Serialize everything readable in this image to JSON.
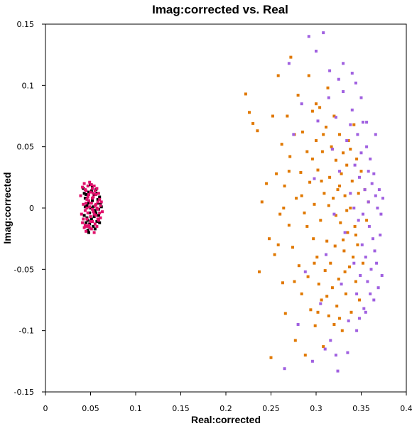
{
  "chart_data": {
    "type": "scatter",
    "title": "Imag:corrected vs. Real",
    "xlabel": "Real:corrected",
    "ylabel": "Imag:corrected",
    "xlim": [
      0,
      0.4
    ],
    "ylim": [
      -0.15,
      0.15
    ],
    "xticks": [
      "0",
      "0.05",
      "0.1",
      "0.15",
      "0.2",
      "0.25",
      "0.3",
      "0.35",
      "0.4"
    ],
    "yticks": [
      "-0.15",
      "-0.1",
      "-0.05",
      "0",
      "0.05",
      "0.1",
      "0.15"
    ],
    "grid": false,
    "legend": "none",
    "series": [
      {
        "color": "#000000",
        "points": [
          [
            0.042,
            0.016
          ],
          [
            0.044,
            0.008
          ],
          [
            0.045,
            -0.012
          ],
          [
            0.046,
            0.002
          ],
          [
            0.047,
            -0.018
          ],
          [
            0.048,
            0.013
          ],
          [
            0.049,
            -0.004
          ],
          [
            0.05,
            0.019
          ],
          [
            0.051,
            -0.009
          ],
          [
            0.052,
            0.006
          ],
          [
            0.053,
            -0.015
          ],
          [
            0.054,
            0.011
          ],
          [
            0.055,
            -0.002
          ],
          [
            0.056,
            0.015
          ],
          [
            0.057,
            -0.011
          ],
          [
            0.058,
            0.004
          ],
          [
            0.059,
            -0.006
          ],
          [
            0.06,
            0.009
          ],
          [
            0.043,
            -0.006
          ],
          [
            0.045,
            0.011
          ],
          [
            0.047,
            0.004
          ],
          [
            0.049,
            -0.013
          ],
          [
            0.051,
            0.014
          ],
          [
            0.053,
            0.001
          ],
          [
            0.055,
            -0.017
          ],
          [
            0.057,
            0.012
          ],
          [
            0.059,
            -0.001
          ],
          [
            0.061,
            0.003
          ],
          [
            0.046,
            -0.008
          ],
          [
            0.05,
            0.0
          ],
          [
            0.054,
            -0.007
          ],
          [
            0.058,
            0.007
          ],
          [
            0.044,
            0.001
          ],
          [
            0.048,
            -0.02
          ],
          [
            0.052,
            0.017
          ],
          [
            0.056,
            -0.004
          ],
          [
            0.06,
            -0.012
          ],
          [
            0.062,
            0.001
          ],
          [
            0.043,
            0.012
          ],
          [
            0.047,
            -0.01
          ]
        ]
      },
      {
        "color": "#e0106a",
        "points": [
          [
            0.039,
            0.01
          ],
          [
            0.04,
            -0.005
          ],
          [
            0.041,
            0.017
          ],
          [
            0.041,
            -0.012
          ],
          [
            0.042,
            0.003
          ],
          [
            0.043,
            -0.016
          ],
          [
            0.043,
            0.02
          ],
          [
            0.044,
            -0.002
          ],
          [
            0.045,
            0.014
          ],
          [
            0.045,
            -0.019
          ],
          [
            0.046,
            0.007
          ],
          [
            0.046,
            -0.009
          ],
          [
            0.047,
            0.018
          ],
          [
            0.047,
            -0.004
          ],
          [
            0.048,
            0.011
          ],
          [
            0.048,
            -0.014
          ],
          [
            0.049,
            0.001
          ],
          [
            0.049,
            0.021
          ],
          [
            0.05,
            -0.007
          ],
          [
            0.05,
            0.013
          ],
          [
            0.051,
            -0.017
          ],
          [
            0.051,
            0.004
          ],
          [
            0.052,
            -0.011
          ],
          [
            0.052,
            0.016
          ],
          [
            0.053,
            -0.003
          ],
          [
            0.053,
            0.009
          ],
          [
            0.054,
            -0.02
          ],
          [
            0.054,
            0.018
          ],
          [
            0.055,
            0.002
          ],
          [
            0.055,
            -0.013
          ],
          [
            0.056,
            0.011
          ],
          [
            0.056,
            -0.006
          ],
          [
            0.057,
            0.016
          ],
          [
            0.057,
            -0.015
          ],
          [
            0.058,
            0.005
          ],
          [
            0.058,
            -0.001
          ],
          [
            0.059,
            0.012
          ],
          [
            0.059,
            -0.01
          ],
          [
            0.06,
            0.007
          ],
          [
            0.06,
            -0.004
          ],
          [
            0.061,
            0.002
          ],
          [
            0.061,
            -0.008
          ],
          [
            0.062,
            0.005
          ],
          [
            0.063,
            -0.003
          ],
          [
            0.042,
            -0.009
          ],
          [
            0.044,
            0.015
          ],
          [
            0.046,
            0.0
          ],
          [
            0.048,
            0.006
          ],
          [
            0.05,
            -0.011
          ],
          [
            0.052,
            0.008
          ],
          [
            0.054,
            -0.005
          ],
          [
            0.056,
            0.003
          ],
          [
            0.058,
            -0.009
          ],
          [
            0.044,
            -0.014
          ],
          [
            0.047,
            0.009
          ],
          [
            0.051,
            0.019
          ],
          [
            0.055,
            0.014
          ],
          [
            0.049,
            -0.016
          ],
          [
            0.053,
            0.012
          ],
          [
            0.057,
            0.0
          ],
          [
            0.045,
            0.004
          ],
          [
            0.05,
            0.004
          ],
          [
            0.046,
            -0.015
          ],
          [
            0.052,
            -0.001
          ]
        ]
      },
      {
        "color": "#e07800",
        "points": [
          [
            0.222,
            0.093
          ],
          [
            0.226,
            0.078
          ],
          [
            0.23,
            0.069
          ],
          [
            0.235,
            0.063
          ],
          [
            0.237,
            -0.052
          ],
          [
            0.24,
            0.005
          ],
          [
            0.245,
            0.02
          ],
          [
            0.248,
            -0.025
          ],
          [
            0.25,
            -0.122
          ],
          [
            0.252,
            0.075
          ],
          [
            0.254,
            -0.038
          ],
          [
            0.256,
            0.028
          ],
          [
            0.258,
            0.108
          ],
          [
            0.26,
            -0.005
          ],
          [
            0.262,
            0.052
          ],
          [
            0.263,
            -0.061
          ],
          [
            0.265,
            0.018
          ],
          [
            0.266,
            -0.086
          ],
          [
            0.268,
            0.075
          ],
          [
            0.27,
            -0.014
          ],
          [
            0.271,
            0.042
          ],
          [
            0.272,
            0.123
          ],
          [
            0.274,
            -0.032
          ],
          [
            0.276,
            0.06
          ],
          [
            0.277,
            -0.108
          ],
          [
            0.278,
            0.008
          ],
          [
            0.28,
            0.092
          ],
          [
            0.281,
            -0.047
          ],
          [
            0.283,
            0.029
          ],
          [
            0.284,
            -0.07
          ],
          [
            0.285,
            0.062
          ],
          [
            0.287,
            -0.004
          ],
          [
            0.288,
            -0.12
          ],
          [
            0.29,
            0.046
          ],
          [
            0.291,
            -0.056
          ],
          [
            0.292,
            0.108
          ],
          [
            0.293,
            0.021
          ],
          [
            0.294,
            -0.083
          ],
          [
            0.296,
            0.079
          ],
          [
            0.297,
            -0.025
          ],
          [
            0.298,
            0.003
          ],
          [
            0.299,
            -0.096
          ],
          [
            0.3,
            0.055
          ],
          [
            0.301,
            -0.04
          ],
          [
            0.302,
            0.031
          ],
          [
            0.303,
            -0.062
          ],
          [
            0.304,
            0.082
          ],
          [
            0.305,
            -0.01
          ],
          [
            0.306,
            -0.075
          ],
          [
            0.307,
            0.046
          ],
          [
            0.308,
            -0.113
          ],
          [
            0.309,
            0.012
          ],
          [
            0.31,
            -0.051
          ],
          [
            0.311,
            0.066
          ],
          [
            0.312,
            -0.027
          ],
          [
            0.313,
            0.098
          ],
          [
            0.314,
            -0.088
          ],
          [
            0.315,
            0.025
          ],
          [
            0.316,
            -0.045
          ],
          [
            0.317,
            0.05
          ],
          [
            0.318,
            -0.065
          ],
          [
            0.319,
            0.008
          ],
          [
            0.32,
            0.075
          ],
          [
            0.321,
            -0.031
          ],
          [
            0.322,
            0.039
          ],
          [
            0.323,
            -0.08
          ],
          [
            0.324,
            0.015
          ],
          [
            0.325,
            -0.058
          ],
          [
            0.326,
            0.06
          ],
          [
            0.327,
            -0.012
          ],
          [
            0.328,
            0.028
          ],
          [
            0.329,
            -0.1
          ],
          [
            0.33,
            0.045
          ],
          [
            0.331,
            -0.035
          ],
          [
            0.332,
            0.01
          ],
          [
            0.333,
            -0.07
          ],
          [
            0.334,
            0.035
          ],
          [
            0.335,
            -0.02
          ],
          [
            0.336,
            0.055
          ],
          [
            0.337,
            -0.048
          ],
          [
            0.338,
            0.0
          ],
          [
            0.339,
            -0.085
          ],
          [
            0.34,
            0.022
          ],
          [
            0.341,
            -0.04
          ],
          [
            0.342,
            0.068
          ],
          [
            0.343,
            -0.015
          ],
          [
            0.344,
            -0.06
          ],
          [
            0.345,
            0.04
          ],
          [
            0.346,
            -0.03
          ],
          [
            0.347,
            0.012
          ],
          [
            0.348,
            -0.075
          ],
          [
            0.35,
            0.03
          ],
          [
            0.352,
            -0.045
          ],
          [
            0.354,
            0.015
          ],
          [
            0.356,
            -0.01
          ],
          [
            0.358,
            0.005
          ],
          [
            0.284,
            0.01
          ],
          [
            0.29,
            -0.015
          ],
          [
            0.296,
            0.04
          ],
          [
            0.302,
            -0.085
          ],
          [
            0.308,
            0.06
          ],
          [
            0.314,
            0.002
          ],
          [
            0.32,
            -0.095
          ],
          [
            0.326,
            0.018
          ],
          [
            0.332,
            -0.052
          ],
          [
            0.338,
            0.048
          ],
          [
            0.344,
            -0.022
          ],
          [
            0.276,
            -0.06
          ],
          [
            0.27,
            0.03
          ],
          [
            0.264,
            0.0
          ],
          [
            0.258,
            -0.03
          ],
          [
            0.3,
            0.085
          ],
          [
            0.318,
            0.048
          ],
          [
            0.322,
            -0.006
          ],
          [
            0.33,
            -0.026
          ],
          [
            0.306,
            0.022
          ],
          [
            0.312,
            -0.072
          ],
          [
            0.326,
            -0.09
          ],
          [
            0.334,
            -0.002
          ],
          [
            0.298,
            -0.045
          ]
        ]
      },
      {
        "color": "#a060e0",
        "points": [
          [
            0.265,
            -0.131
          ],
          [
            0.27,
            0.118
          ],
          [
            0.275,
            0.06
          ],
          [
            0.28,
            -0.095
          ],
          [
            0.284,
            0.085
          ],
          [
            0.288,
            -0.052
          ],
          [
            0.292,
            0.14
          ],
          [
            0.296,
            -0.125
          ],
          [
            0.298,
            0.024
          ],
          [
            0.302,
            0.071
          ],
          [
            0.305,
            -0.078
          ],
          [
            0.308,
            0.143
          ],
          [
            0.311,
            -0.038
          ],
          [
            0.314,
            0.09
          ],
          [
            0.316,
            -0.108
          ],
          [
            0.318,
            0.048
          ],
          [
            0.32,
            -0.005
          ],
          [
            0.322,
            0.074
          ],
          [
            0.324,
            -0.133
          ],
          [
            0.326,
            0.03
          ],
          [
            0.328,
            -0.062
          ],
          [
            0.33,
            0.095
          ],
          [
            0.332,
            -0.02
          ],
          [
            0.334,
            0.055
          ],
          [
            0.336,
            -0.092
          ],
          [
            0.338,
            0.012
          ],
          [
            0.34,
            0.08
          ],
          [
            0.342,
            -0.045
          ],
          [
            0.343,
            0.035
          ],
          [
            0.345,
            -0.07
          ],
          [
            0.346,
            0.06
          ],
          [
            0.347,
            -0.01
          ],
          [
            0.348,
            0.025
          ],
          [
            0.349,
            -0.055
          ],
          [
            0.35,
            0.045
          ],
          [
            0.351,
            -0.03
          ],
          [
            0.352,
            0.07
          ],
          [
            0.353,
            -0.082
          ],
          [
            0.354,
            0.015
          ],
          [
            0.355,
            -0.04
          ],
          [
            0.356,
            0.05
          ],
          [
            0.357,
            -0.06
          ],
          [
            0.358,
            0.03
          ],
          [
            0.359,
            -0.015
          ],
          [
            0.36,
            0.04
          ],
          [
            0.361,
            -0.05
          ],
          [
            0.362,
            0.02
          ],
          [
            0.363,
            -0.025
          ],
          [
            0.364,
            0.028
          ],
          [
            0.365,
            -0.035
          ],
          [
            0.366,
            0.01
          ],
          [
            0.367,
            -0.045
          ],
          [
            0.368,
            0.0
          ],
          [
            0.369,
            -0.065
          ],
          [
            0.37,
            0.015
          ],
          [
            0.371,
            -0.022
          ],
          [
            0.372,
            -0.005
          ],
          [
            0.373,
            -0.055
          ],
          [
            0.374,
            0.008
          ],
          [
            0.34,
            0.11
          ],
          [
            0.345,
            -0.1
          ],
          [
            0.35,
            0.09
          ],
          [
            0.355,
            -0.085
          ],
          [
            0.3,
            0.128
          ],
          [
            0.31,
            -0.115
          ],
          [
            0.33,
            0.118
          ],
          [
            0.335,
            -0.118
          ],
          [
            0.344,
            0.102
          ],
          [
            0.36,
            -0.07
          ],
          [
            0.366,
            0.06
          ],
          [
            0.325,
            0.105
          ],
          [
            0.315,
            0.112
          ],
          [
            0.322,
            -0.12
          ],
          [
            0.338,
            0.068
          ],
          [
            0.356,
            0.07
          ],
          [
            0.364,
            -0.075
          ],
          [
            0.348,
            -0.09
          ],
          [
            0.358,
            0.005
          ],
          [
            0.342,
            0.0
          ],
          [
            0.352,
            -0.005
          ]
        ]
      }
    ]
  }
}
